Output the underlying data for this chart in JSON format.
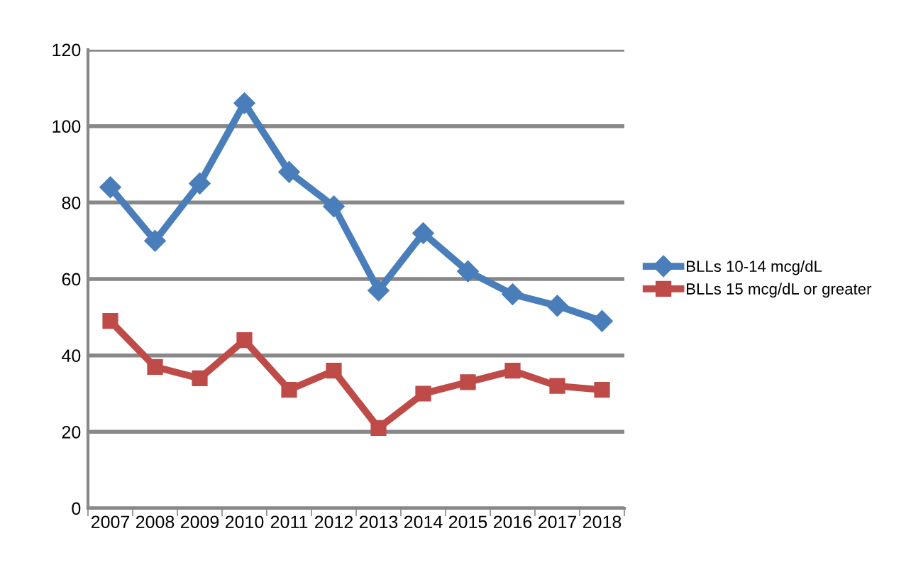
{
  "chart_data": {
    "type": "line",
    "categories": [
      "2007",
      "2008",
      "2009",
      "2010",
      "2011",
      "2012",
      "2013",
      "2014",
      "2015",
      "2016",
      "2017",
      "2018"
    ],
    "series": [
      {
        "name": "BLLs 10-14 mcg/dL",
        "color": "#4a7ebb",
        "marker": "diamond",
        "values": [
          84,
          70,
          85,
          106,
          88,
          79,
          57,
          72,
          62,
          56,
          53,
          49
        ]
      },
      {
        "name": "BLLs 15 mcg/dL or greater",
        "color": "#be4b48",
        "marker": "square",
        "values": [
          49,
          37,
          34,
          44,
          31,
          36,
          21,
          30,
          33,
          36,
          32,
          31
        ]
      }
    ],
    "ylim": [
      0,
      120
    ],
    "yticks": [
      0,
      20,
      40,
      60,
      80,
      100,
      120
    ],
    "grid": "y",
    "legend": "right"
  }
}
